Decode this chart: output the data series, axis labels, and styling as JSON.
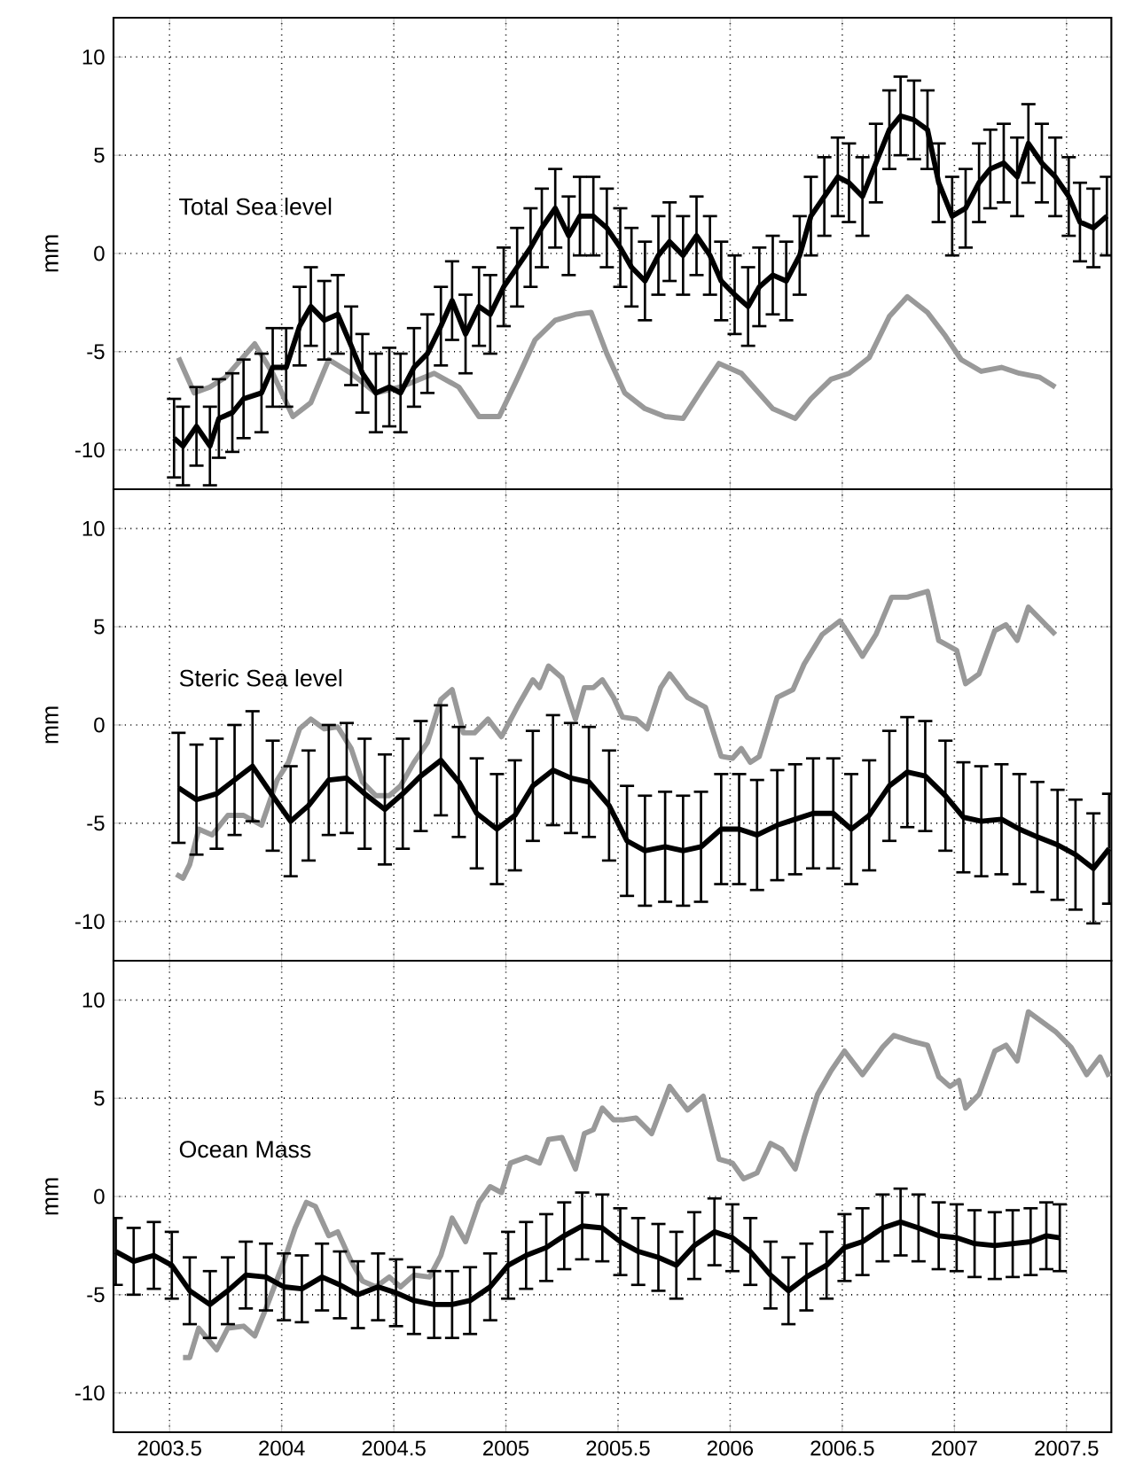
{
  "chart_data": [
    {
      "type": "line",
      "title": "Total Sea level",
      "ylabel": "mm",
      "xlim": [
        2003.25,
        2007.7
      ],
      "ylim": [
        -12,
        12
      ],
      "xticks": [
        2003.5,
        2004,
        2004.5,
        2005,
        2005.5,
        2006,
        2006.5,
        2007,
        2007.5
      ],
      "yticks": [
        -10,
        -5,
        0,
        5,
        10
      ],
      "grid": true,
      "tick_labels": "y",
      "series": [
        {
          "color": "#999999",
          "x": [
            2003.54,
            2003.61,
            2003.68,
            2003.75,
            2003.88,
            2003.96,
            2004.05,
            2004.13,
            2004.21,
            2004.31,
            2004.42,
            2004.53,
            2004.68,
            2004.79,
            2004.88,
            2004.97,
            2005.05,
            2005.13,
            2005.22,
            2005.31,
            2005.38,
            2005.45,
            2005.53,
            2005.62,
            2005.71,
            2005.79,
            2005.88,
            2005.95,
            2006.05,
            2006.19,
            2006.29,
            2006.36,
            2006.45,
            2006.53,
            2006.62,
            2006.71,
            2006.79,
            2006.88,
            2006.96,
            2007.03,
            2007.12,
            2007.21,
            2007.29,
            2007.38,
            2007.45
          ],
          "values": [
            -5.3,
            -7.1,
            -6.8,
            -6.3,
            -4.6,
            -6.1,
            -8.3,
            -7.6,
            -5.4,
            -6.1,
            -7.1,
            -6.8,
            -6.1,
            -6.8,
            -8.3,
            -8.3,
            -6.4,
            -4.4,
            -3.4,
            -3.1,
            -3.0,
            -5.1,
            -7.1,
            -7.9,
            -8.3,
            -8.4,
            -6.8,
            -5.6,
            -6.1,
            -7.9,
            -8.4,
            -7.4,
            -6.4,
            -6.1,
            -5.3,
            -3.2,
            -2.2,
            -3.0,
            -4.2,
            -5.4,
            -6.0,
            -5.8,
            -6.1,
            -6.3,
            -6.8
          ]
        },
        {
          "color": "#000000",
          "x": [
            2003.52,
            2003.56,
            2003.62,
            2003.68,
            2003.72,
            2003.78,
            2003.83,
            2003.91,
            2003.96,
            2004.02,
            2004.08,
            2004.13,
            2004.19,
            2004.25,
            2004.31,
            2004.36,
            2004.42,
            2004.48,
            2004.53,
            2004.59,
            2004.65,
            2004.71,
            2004.76,
            2004.82,
            2004.88,
            2004.93,
            2004.99,
            2005.05,
            2005.11,
            2005.16,
            2005.22,
            2005.28,
            2005.33,
            2005.39,
            2005.45,
            2005.51,
            2005.56,
            2005.62,
            2005.68,
            2005.73,
            2005.79,
            2005.85,
            2005.91,
            2005.96,
            2006.02,
            2006.08,
            2006.13,
            2006.19,
            2006.25,
            2006.31,
            2006.36,
            2006.42,
            2006.48,
            2006.53,
            2006.59,
            2006.65,
            2006.71,
            2006.76,
            2006.82,
            2006.88,
            2006.93,
            2006.99,
            2007.05,
            2007.11,
            2007.16,
            2007.22,
            2007.28,
            2007.33,
            2007.39,
            2007.45,
            2007.51,
            2007.56,
            2007.62,
            2007.68
          ],
          "values": [
            -9.4,
            -9.8,
            -8.8,
            -9.8,
            -8.4,
            -8.1,
            -7.4,
            -7.1,
            -5.8,
            -5.8,
            -3.7,
            -2.7,
            -3.4,
            -3.1,
            -4.7,
            -6.1,
            -7.1,
            -6.8,
            -7.1,
            -5.8,
            -5.1,
            -3.7,
            -2.4,
            -4.1,
            -2.7,
            -3.1,
            -1.7,
            -0.7,
            0.3,
            1.3,
            2.3,
            0.9,
            1.9,
            1.9,
            1.3,
            0.3,
            -0.7,
            -1.4,
            -0.1,
            0.6,
            -0.1,
            0.9,
            -0.1,
            -1.4,
            -2.1,
            -2.7,
            -1.7,
            -1.1,
            -1.4,
            -0.1,
            1.9,
            2.9,
            3.9,
            3.6,
            2.9,
            4.6,
            6.3,
            7.0,
            6.8,
            6.3,
            3.6,
            1.9,
            2.3,
            3.6,
            4.3,
            4.6,
            3.9,
            5.6,
            4.6,
            3.9,
            2.9,
            1.6,
            1.3,
            1.9
          ],
          "errors": [
            2,
            2,
            2,
            2,
            2,
            2,
            2,
            2,
            2,
            2,
            2,
            2,
            2,
            2,
            2,
            2,
            2,
            2,
            2,
            2,
            2,
            2,
            2,
            2,
            2,
            2,
            2,
            2,
            2,
            2,
            2,
            2,
            2,
            2,
            2,
            2,
            2,
            2,
            2,
            2,
            2,
            2,
            2,
            2,
            2,
            2,
            2,
            2,
            2,
            2,
            2,
            2,
            2,
            2,
            2,
            2,
            2,
            2,
            2,
            2,
            2,
            2,
            2,
            2,
            2,
            2,
            2,
            2,
            2,
            2,
            2,
            2,
            2,
            2
          ]
        }
      ]
    },
    {
      "type": "line",
      "title": "Steric Sea level",
      "ylabel": "mm",
      "xlim": [
        2003.25,
        2007.7
      ],
      "ylim": [
        -12,
        12
      ],
      "xticks": [
        2003.5,
        2004,
        2004.5,
        2005,
        2005.5,
        2006,
        2006.5,
        2007,
        2007.5
      ],
      "yticks": [
        -10,
        -5,
        0,
        5,
        10
      ],
      "grid": true,
      "tick_labels": "y",
      "series": [
        {
          "color": "#999999",
          "x": [
            2003.53,
            2003.56,
            2003.59,
            2003.63,
            2003.69,
            2003.76,
            2003.83,
            2003.91,
            2003.98,
            2004.03,
            2004.08,
            2004.13,
            2004.19,
            2004.25,
            2004.31,
            2004.36,
            2004.42,
            2004.48,
            2004.53,
            2004.59,
            2004.65,
            2004.71,
            2004.76,
            2004.81,
            2004.86,
            2004.92,
            2004.98,
            2005.05,
            2005.12,
            2005.15,
            2005.19,
            2005.25,
            2005.31,
            2005.35,
            2005.39,
            2005.43,
            2005.48,
            2005.52,
            2005.58,
            2005.63,
            2005.69,
            2005.73,
            2005.81,
            2005.89,
            2005.96,
            2006.01,
            2006.05,
            2006.09,
            2006.13,
            2006.21,
            2006.28,
            2006.33,
            2006.41,
            2006.49,
            2006.53,
            2006.59,
            2006.65,
            2006.72,
            2006.79,
            2006.88,
            2006.93,
            2007.01,
            2007.05,
            2007.11,
            2007.18,
            2007.23,
            2007.28,
            2007.33,
            2007.39,
            2007.45
          ],
          "values": [
            -7.6,
            -7.8,
            -7.1,
            -5.3,
            -5.6,
            -4.6,
            -4.6,
            -5.1,
            -2.8,
            -1.9,
            -0.2,
            0.3,
            -0.2,
            -0.1,
            -1.2,
            -2.9,
            -3.6,
            -3.6,
            -3.1,
            -1.9,
            -0.9,
            1.3,
            1.8,
            -0.4,
            -0.4,
            0.3,
            -0.6,
            0.9,
            2.3,
            1.9,
            3.0,
            2.4,
            0.3,
            1.9,
            1.9,
            2.3,
            1.4,
            0.4,
            0.3,
            -0.2,
            1.9,
            2.6,
            1.4,
            0.9,
            -1.6,
            -1.7,
            -1.2,
            -1.9,
            -1.6,
            1.4,
            1.8,
            3.1,
            4.6,
            5.3,
            4.6,
            3.5,
            4.6,
            6.5,
            6.5,
            6.8,
            4.3,
            3.8,
            2.1,
            2.6,
            4.8,
            5.1,
            4.3,
            6.0,
            5.3,
            4.6
          ]
        },
        {
          "color": "#000000",
          "x": [
            2003.54,
            2003.62,
            2003.71,
            2003.79,
            2003.87,
            2003.96,
            2004.04,
            2004.12,
            2004.21,
            2004.29,
            2004.37,
            2004.46,
            2004.54,
            2004.62,
            2004.71,
            2004.79,
            2004.87,
            2004.96,
            2005.04,
            2005.12,
            2005.21,
            2005.29,
            2005.37,
            2005.46,
            2005.54,
            2005.62,
            2005.71,
            2005.79,
            2005.87,
            2005.96,
            2006.04,
            2006.12,
            2006.21,
            2006.29,
            2006.37,
            2006.46,
            2006.54,
            2006.62,
            2006.71,
            2006.79,
            2006.87,
            2006.96,
            2007.04,
            2007.12,
            2007.21,
            2007.29,
            2007.37,
            2007.46,
            2007.54,
            2007.62,
            2007.69
          ],
          "values": [
            -3.2,
            -3.8,
            -3.5,
            -2.8,
            -2.1,
            -3.6,
            -4.9,
            -4.1,
            -2.8,
            -2.7,
            -3.5,
            -4.3,
            -3.5,
            -2.6,
            -1.8,
            -2.9,
            -4.5,
            -5.3,
            -4.6,
            -3.1,
            -2.3,
            -2.7,
            -2.9,
            -4.1,
            -5.9,
            -6.4,
            -6.2,
            -6.4,
            -6.2,
            -5.3,
            -5.3,
            -5.6,
            -5.1,
            -4.8,
            -4.5,
            -4.5,
            -5.3,
            -4.6,
            -3.1,
            -2.4,
            -2.6,
            -3.6,
            -4.7,
            -4.9,
            -4.8,
            -5.3,
            -5.7,
            -6.1,
            -6.6,
            -7.3,
            -6.3
          ],
          "errors": [
            2.8,
            2.8,
            2.8,
            2.8,
            2.8,
            2.8,
            2.8,
            2.8,
            2.8,
            2.8,
            2.8,
            2.8,
            2.8,
            2.8,
            2.8,
            2.8,
            2.8,
            2.8,
            2.8,
            2.8,
            2.8,
            2.8,
            2.8,
            2.8,
            2.8,
            2.8,
            2.8,
            2.8,
            2.8,
            2.8,
            2.8,
            2.8,
            2.8,
            2.8,
            2.8,
            2.8,
            2.8,
            2.8,
            2.8,
            2.8,
            2.8,
            2.8,
            2.8,
            2.8,
            2.8,
            2.8,
            2.8,
            2.8,
            2.8,
            2.8,
            2.8
          ]
        }
      ]
    },
    {
      "type": "line",
      "title": "Ocean Mass",
      "ylabel": "mm",
      "xlim": [
        2003.25,
        2007.7
      ],
      "ylim": [
        -12,
        12
      ],
      "xticks": [
        2003.5,
        2004,
        2004.5,
        2005,
        2005.5,
        2006,
        2006.5,
        2007,
        2007.5
      ],
      "yticks": [
        -10,
        -5,
        0,
        5,
        10
      ],
      "grid": true,
      "series": [
        {
          "color": "#999999",
          "x": [
            2003.56,
            2003.59,
            2003.63,
            2003.71,
            2003.76,
            2003.83,
            2003.88,
            2003.93,
            2004.01,
            2004.06,
            2004.11,
            2004.15,
            2004.21,
            2004.25,
            2004.31,
            2004.36,
            2004.42,
            2004.48,
            2004.53,
            2004.59,
            2004.66,
            2004.71,
            2004.76,
            2004.82,
            2004.88,
            2004.93,
            2004.98,
            2005.02,
            2005.09,
            2005.15,
            2005.19,
            2005.25,
            2005.31,
            2005.35,
            2005.39,
            2005.43,
            2005.48,
            2005.52,
            2005.58,
            2005.65,
            2005.73,
            2005.81,
            2005.88,
            2005.95,
            2006.01,
            2006.06,
            2006.12,
            2006.18,
            2006.23,
            2006.29,
            2006.33,
            2006.39,
            2006.45,
            2006.51,
            2006.59,
            2006.68,
            2006.73,
            2006.81,
            2006.88,
            2006.93,
            2006.98,
            2007.02,
            2007.05,
            2007.11,
            2007.18,
            2007.23,
            2007.28,
            2007.33,
            2007.39,
            2007.45,
            2007.52,
            2007.59,
            2007.65,
            2007.69
          ],
          "values": [
            -8.2,
            -8.2,
            -6.7,
            -7.8,
            -6.7,
            -6.6,
            -7.1,
            -5.7,
            -3.3,
            -1.6,
            -0.3,
            -0.5,
            -2.0,
            -1.8,
            -3.3,
            -4.3,
            -4.6,
            -4.1,
            -4.6,
            -4.0,
            -4.1,
            -3.0,
            -1.1,
            -2.3,
            -0.3,
            0.5,
            0.2,
            1.7,
            2.0,
            1.7,
            2.9,
            3.0,
            1.4,
            3.2,
            3.4,
            4.5,
            3.9,
            3.9,
            4.0,
            3.2,
            5.6,
            4.4,
            5.1,
            1.9,
            1.7,
            0.9,
            1.2,
            2.7,
            2.4,
            1.4,
            3.0,
            5.2,
            6.4,
            7.4,
            6.2,
            7.6,
            8.2,
            7.9,
            7.7,
            6.1,
            5.6,
            5.9,
            4.5,
            5.2,
            7.4,
            7.7,
            6.9,
            9.4,
            8.9,
            8.4,
            7.6,
            6.2,
            7.1,
            6.1
          ]
        },
        {
          "color": "#000000",
          "x": [
            2003.26,
            2003.34,
            2003.43,
            2003.51,
            2003.59,
            2003.68,
            2003.76,
            2003.84,
            2003.93,
            2004.01,
            2004.09,
            2004.18,
            2004.26,
            2004.34,
            2004.43,
            2004.51,
            2004.59,
            2004.68,
            2004.76,
            2004.84,
            2004.93,
            2005.01,
            2005.09,
            2005.18,
            2005.26,
            2005.34,
            2005.43,
            2005.51,
            2005.59,
            2005.68,
            2005.76,
            2005.84,
            2005.93,
            2006.01,
            2006.09,
            2006.18,
            2006.26,
            2006.34,
            2006.43,
            2006.51,
            2006.59,
            2006.68,
            2006.76,
            2006.84,
            2006.93,
            2007.01,
            2007.09,
            2007.18,
            2007.26,
            2007.34,
            2007.41,
            2007.47
          ],
          "values": [
            -2.8,
            -3.3,
            -3.0,
            -3.5,
            -4.8,
            -5.5,
            -4.8,
            -4.0,
            -4.1,
            -4.6,
            -4.7,
            -4.1,
            -4.5,
            -5.0,
            -4.6,
            -4.9,
            -5.3,
            -5.5,
            -5.5,
            -5.3,
            -4.6,
            -3.5,
            -3.0,
            -2.6,
            -2.0,
            -1.5,
            -1.6,
            -2.3,
            -2.8,
            -3.1,
            -3.5,
            -2.5,
            -1.8,
            -2.1,
            -2.8,
            -4.0,
            -4.8,
            -4.1,
            -3.5,
            -2.6,
            -2.3,
            -1.6,
            -1.3,
            -1.6,
            -2.0,
            -2.1,
            -2.4,
            -2.5,
            -2.4,
            -2.3,
            -2.0,
            -2.1
          ],
          "errors": [
            1.7,
            1.7,
            1.7,
            1.7,
            1.7,
            1.7,
            1.7,
            1.7,
            1.7,
            1.7,
            1.7,
            1.7,
            1.7,
            1.7,
            1.7,
            1.7,
            1.7,
            1.7,
            1.7,
            1.7,
            1.7,
            1.7,
            1.7,
            1.7,
            1.7,
            1.7,
            1.7,
            1.7,
            1.7,
            1.7,
            1.7,
            1.7,
            1.7,
            1.7,
            1.7,
            1.7,
            1.7,
            1.7,
            1.7,
            1.7,
            1.7,
            1.7,
            1.7,
            1.7,
            1.7,
            1.7,
            1.7,
            1.7,
            1.7,
            1.7,
            1.7,
            1.7
          ]
        }
      ]
    }
  ]
}
